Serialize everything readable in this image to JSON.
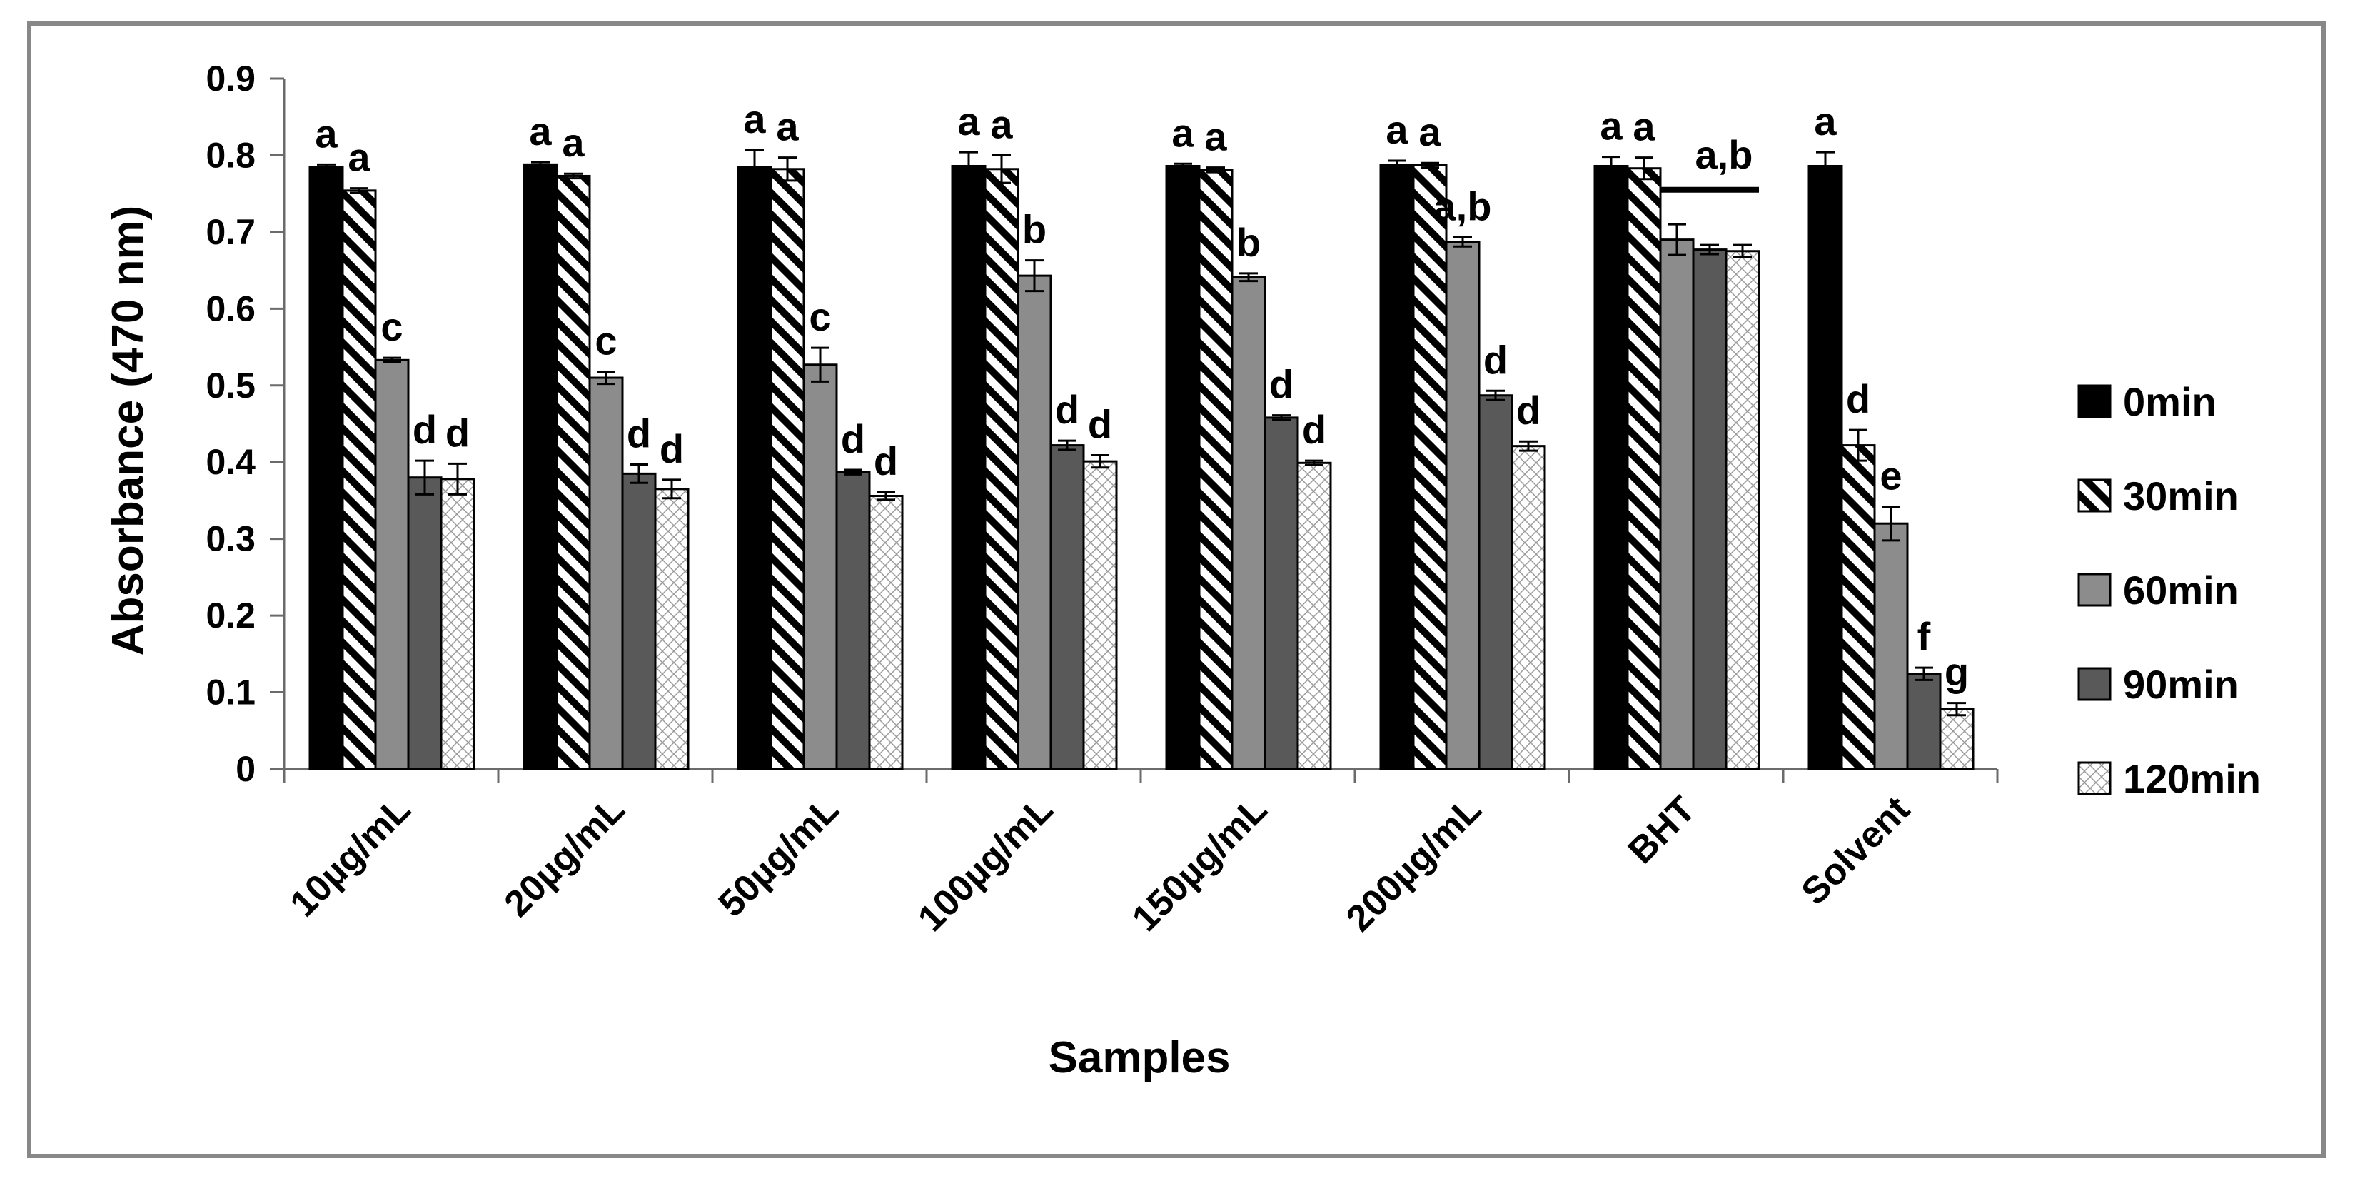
{
  "chart_data": {
    "type": "bar",
    "title": "",
    "xlabel": "Samples",
    "ylabel": "Absorbance (470 nm)",
    "ylim": [
      0,
      0.9
    ],
    "yticks": [
      "0",
      "0.1",
      "0.2",
      "0.3",
      "0.4",
      "0.5",
      "0.6",
      "0.7",
      "0.8",
      "0.9"
    ],
    "grid": false,
    "legend_position": "right",
    "categories": [
      "10µg/mL",
      "20µg/mL",
      "50µg/mL",
      "100µg/mL",
      "150µg/mL",
      "200µg/mL",
      "BHT",
      "Solvent"
    ],
    "series": [
      {
        "name": "0min",
        "pattern": "solid-black",
        "values": [
          0.785,
          0.788,
          0.785,
          0.786,
          0.786,
          0.787,
          0.786,
          0.786
        ],
        "errors": [
          0.003,
          0.003,
          0.022,
          0.018,
          0.003,
          0.006,
          0.012,
          0.018
        ],
        "labels": [
          "a",
          "a",
          "a",
          "a",
          "a",
          "a",
          "a",
          "a"
        ]
      },
      {
        "name": "30min",
        "pattern": "diagonal-stripes",
        "values": [
          0.754,
          0.773,
          0.782,
          0.782,
          0.781,
          0.787,
          0.783,
          0.422
        ],
        "errors": [
          0.003,
          0.003,
          0.015,
          0.018,
          0.003,
          0.003,
          0.014,
          0.02
        ],
        "labels": [
          "a",
          "a",
          "a",
          "a",
          "a",
          "a",
          "a",
          "d"
        ]
      },
      {
        "name": "60min",
        "pattern": "solid-gray",
        "values": [
          0.533,
          0.51,
          0.527,
          0.643,
          0.641,
          0.687,
          0.69,
          0.32
        ],
        "errors": [
          0.003,
          0.008,
          0.022,
          0.02,
          0.005,
          0.006,
          0.02,
          0.022
        ],
        "labels": [
          "c",
          "c",
          "c",
          "b",
          "b",
          "a,b",
          "",
          "e"
        ]
      },
      {
        "name": "90min",
        "pattern": "solid-darkgray",
        "values": [
          0.38,
          0.385,
          0.387,
          0.422,
          0.458,
          0.487,
          0.677,
          0.124
        ],
        "errors": [
          0.022,
          0.012,
          0.003,
          0.006,
          0.003,
          0.006,
          0.006,
          0.008
        ],
        "labels": [
          "d",
          "d",
          "d",
          "d",
          "d",
          "d",
          "",
          "f"
        ]
      },
      {
        "name": "120min",
        "pattern": "dotted-white",
        "values": [
          0.378,
          0.365,
          0.356,
          0.401,
          0.399,
          0.421,
          0.675,
          0.078
        ],
        "errors": [
          0.02,
          0.012,
          0.005,
          0.008,
          0.003,
          0.006,
          0.008,
          0.008
        ],
        "labels": [
          "d",
          "d",
          "d",
          "d",
          "d",
          "d",
          "",
          "g"
        ]
      }
    ],
    "annotations": [
      {
        "text": "a,b",
        "category": "BHT",
        "note": "bracket spanning 60min to 120min bars",
        "value": 0.755
      }
    ],
    "colors": {
      "black": "#000000",
      "dark_gray": "#595959",
      "gray": "#8c8c8c",
      "frame": "#888888"
    }
  }
}
